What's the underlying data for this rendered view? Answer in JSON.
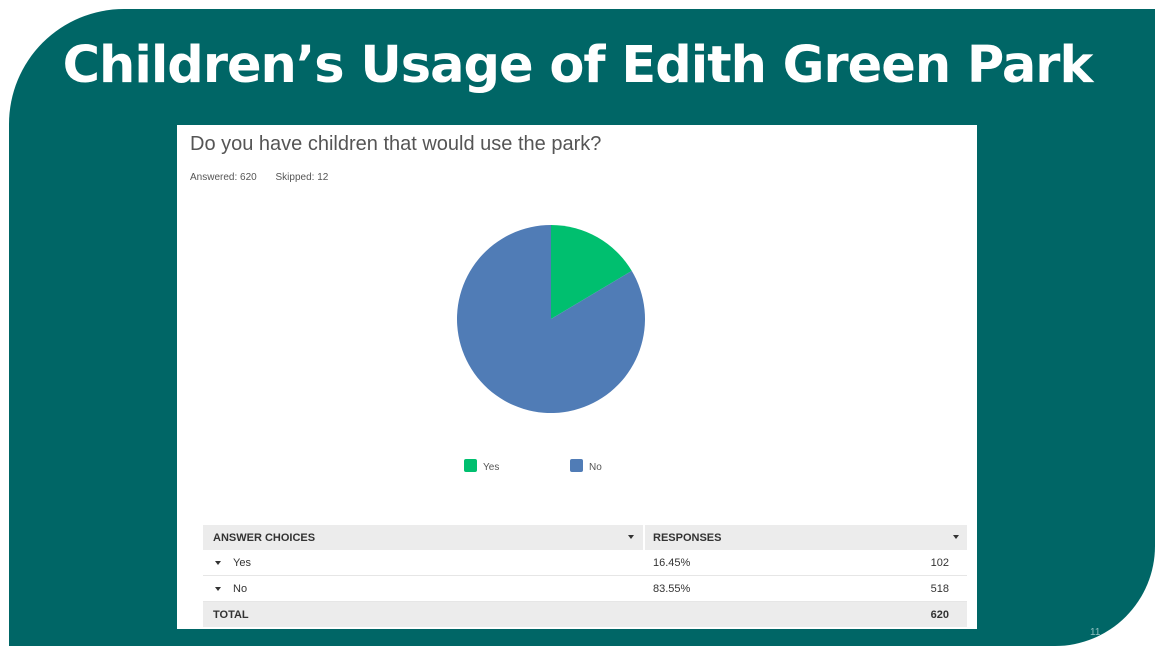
{
  "slide": {
    "title": "Children’s Usage of Edith Green Park",
    "page_number": "11",
    "background_color": "#006666"
  },
  "survey": {
    "question": "Do you have children that would use the park?",
    "answered": "Answered: 620",
    "skipped": "Skipped: 12"
  },
  "chart_data": {
    "type": "pie",
    "categories": [
      "Yes",
      "No"
    ],
    "values": [
      16.45,
      83.55
    ],
    "colors": [
      "#00bf6f",
      "#507cb6"
    ],
    "legend_position": "bottom"
  },
  "table": {
    "headers": [
      "ANSWER CHOICES",
      "RESPONSES"
    ],
    "rows": [
      {
        "choice": "Yes",
        "percent": "16.45%",
        "count": "102"
      },
      {
        "choice": "No",
        "percent": "83.55%",
        "count": "518"
      }
    ],
    "total_label": "TOTAL",
    "total_count": "620"
  }
}
